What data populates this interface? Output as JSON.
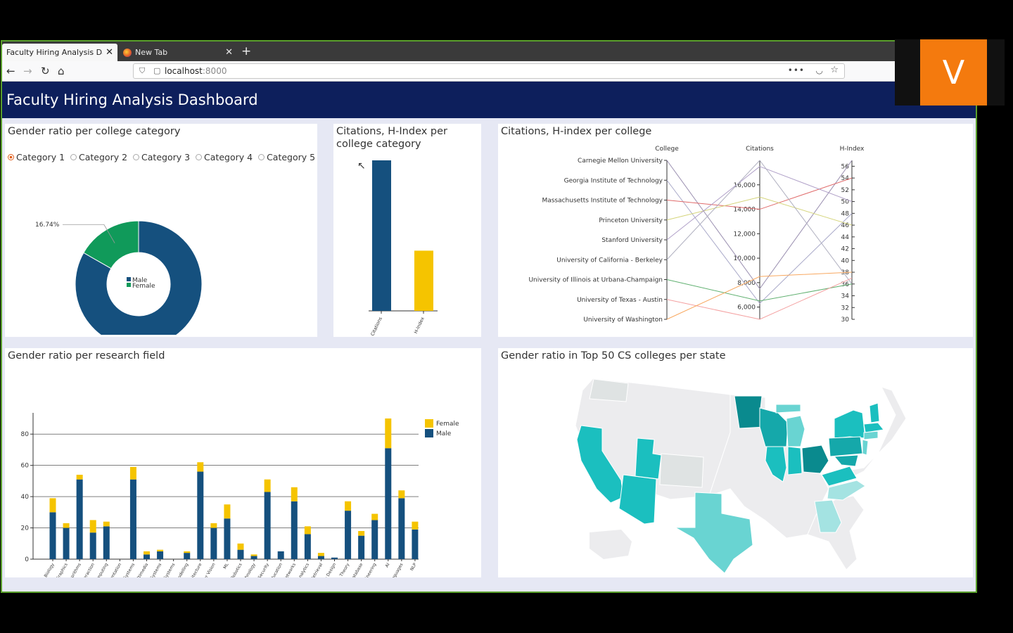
{
  "browser": {
    "tabs": [
      {
        "label": "Faculty Hiring Analysis Dashb",
        "active": true
      },
      {
        "label": "New Tab",
        "active": false
      }
    ],
    "url_host": "localhost",
    "url_port": ":8000"
  },
  "dashboard": {
    "title": "Faculty Hiring Analysis Dashboard"
  },
  "gender_panel": {
    "title": "Gender ratio per college category",
    "categories": [
      "Category 1",
      "Category 2",
      "Category 3",
      "Category 4",
      "Category 5"
    ],
    "selected": "Category 1"
  },
  "citations_panel": {
    "title_line1": "Citations, H-Index per",
    "title_line2": "college category"
  },
  "college_panel": {
    "title": "Citations, H-index per college"
  },
  "research_panel": {
    "title": "Gender ratio per research field"
  },
  "map_panel": {
    "title": "Gender ratio in Top 50 CS colleges per state"
  },
  "logo": {
    "letter": "V"
  },
  "colors": {
    "male": "#15507e",
    "female": "#f5c400",
    "female_donut": "#109a5a",
    "header": "#0d1f5c",
    "map_light": "#69d4d2",
    "map_mid": "#1bbfbf",
    "map_dark": "#0a8a8e"
  },
  "chart_data": [
    {
      "type": "pie",
      "title": "Gender ratio per college category",
      "labels": [
        "Male",
        "Female"
      ],
      "values": [
        83.25,
        16.74
      ],
      "value_labels": [
        "83.25%",
        "16.74%"
      ],
      "donut": true
    },
    {
      "type": "bar",
      "title": "Citations, H-Index per college category",
      "categories": [
        "Citations",
        "H-Index"
      ],
      "values": [
        1.0,
        0.4
      ],
      "value_scale": "relative"
    },
    {
      "type": "line",
      "subtype": "parallel-coordinates",
      "title": "Citations, H-index per college",
      "axes": [
        "College",
        "Citations",
        "H-Index"
      ],
      "colleges": [
        "Carnegie Mellon University",
        "Georgia Institute of Technology",
        "Massachusetts Institute of Technology",
        "Princeton University",
        "Stanford University",
        "University of California - Berkeley",
        "University of Illinois at Urbana-Champaign",
        "University of Texas - Austin",
        "University of Washington"
      ],
      "citations_ticks": [
        "6,000",
        "8,000",
        "10,000",
        "12,000",
        "14,000",
        "16,000"
      ],
      "citations_range": [
        5000,
        18000
      ],
      "hindex_ticks": [
        "30",
        "32",
        "34",
        "36",
        "38",
        "40",
        "42",
        "44",
        "46",
        "48",
        "50",
        "52",
        "54",
        "56"
      ],
      "hindex_range": [
        30,
        57
      ],
      "series": [
        {
          "name": "Carnegie Mellon University",
          "citations": 7500,
          "hindex": 57,
          "color": "#9a8fb0"
        },
        {
          "name": "Georgia Institute of Technology",
          "citations": 6300,
          "hindex": 48,
          "color": "#a8a8c8"
        },
        {
          "name": "Massachusetts Institute of Technology",
          "citations": 14000,
          "hindex": 54,
          "color": "#e06a6a"
        },
        {
          "name": "Princeton University",
          "citations": 15000,
          "hindex": 46,
          "color": "#d4d47a"
        },
        {
          "name": "Stanford University",
          "citations": 17500,
          "hindex": 50,
          "color": "#b0a0c8"
        },
        {
          "name": "University of California - Berkeley",
          "citations": 18000,
          "hindex": 36,
          "color": "#b0b0c0"
        },
        {
          "name": "University of Illinois at Urbana-Champaign",
          "citations": 6500,
          "hindex": 36,
          "color": "#60b070"
        },
        {
          "name": "University of Texas - Austin",
          "citations": 5000,
          "hindex": 37,
          "color": "#f4a0a0"
        },
        {
          "name": "University of Washington",
          "citations": 8500,
          "hindex": 38,
          "color": "#f8a860"
        }
      ]
    },
    {
      "type": "bar",
      "stacked": true,
      "title": "Gender ratio per research field",
      "ylim": [
        0,
        90
      ],
      "yticks": [
        0,
        20,
        40,
        60,
        80
      ],
      "categories": [
        "Computational Biology",
        "Graphics",
        "Algorithms",
        "Human Computer Interaction",
        "Computing",
        "Knowledge Representation",
        "Systems",
        "Multimedia",
        "Distributed Systems",
        "Energy Efficient Systems",
        "Modelling",
        "Computer Architecture",
        "Computer Vision",
        "ML",
        "Robotics",
        "Emerging Technology",
        "Security",
        "Computer Education",
        "Networks",
        "Data Analytics",
        "Information Retrieval",
        "Game Design",
        "Theory",
        "Database",
        "Software Engineering",
        "AI",
        "Programming Languages",
        "NLP"
      ],
      "series": [
        {
          "name": "Male",
          "values": [
            30,
            20,
            51,
            17,
            21,
            0,
            51,
            3,
            5,
            0,
            4,
            56,
            20,
            26,
            6,
            2,
            43,
            5,
            37,
            16,
            2,
            1,
            31,
            15,
            25,
            71,
            39,
            19
          ]
        },
        {
          "name": "Female",
          "values": [
            9,
            3,
            3,
            8,
            3,
            0,
            8,
            2,
            1,
            0,
            1,
            6,
            3,
            9,
            4,
            1,
            8,
            0,
            9,
            5,
            2,
            0,
            6,
            3,
            4,
            19,
            5,
            5
          ]
        }
      ]
    }
  ]
}
